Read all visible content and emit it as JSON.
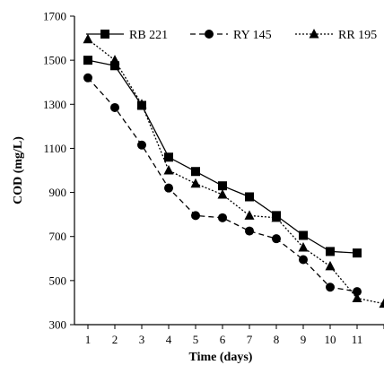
{
  "chart_data": {
    "type": "line",
    "title": "",
    "xlabel": "Time (days)",
    "ylabel": "COD (mg/L)",
    "x": [
      1,
      2,
      3,
      4,
      5,
      6,
      7,
      8,
      9,
      10,
      11,
      12
    ],
    "x_tick_labels": [
      "1",
      "2",
      "3",
      "4",
      "5",
      "6",
      "7",
      "8",
      "9",
      "10",
      "11"
    ],
    "xlim": [
      0.5,
      12
    ],
    "ylim": [
      300,
      1700
    ],
    "y_ticks": [
      300,
      500,
      700,
      900,
      1100,
      1300,
      1500,
      1700
    ],
    "grid": false,
    "legend_position": "top",
    "series": [
      {
        "name": "RB 221",
        "marker": "square",
        "line_style": "solid",
        "values": [
          1500,
          1475,
          1295,
          1060,
          995,
          930,
          880,
          795,
          705,
          632,
          625,
          null
        ]
      },
      {
        "name": "RY 145",
        "marker": "circle",
        "line_style": "dashed",
        "values": [
          1420,
          1285,
          1115,
          920,
          795,
          785,
          725,
          690,
          595,
          470,
          450,
          null
        ]
      },
      {
        "name": "RR 195",
        "marker": "triangle",
        "line_style": "dotted",
        "values": [
          1595,
          1500,
          1300,
          1000,
          940,
          890,
          795,
          785,
          650,
          565,
          420,
          395
        ]
      }
    ]
  }
}
